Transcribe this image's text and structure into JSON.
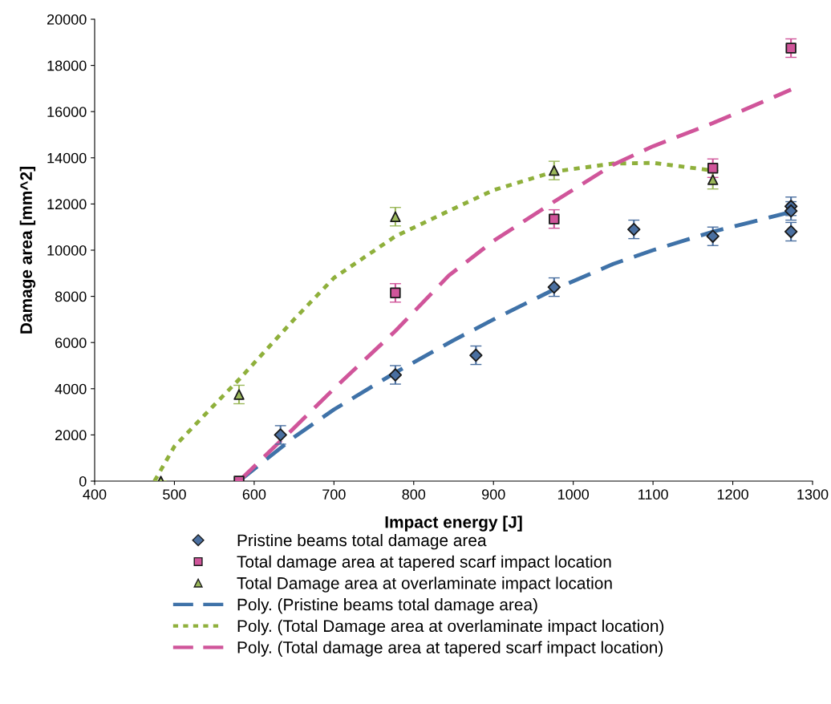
{
  "chart_data": {
    "type": "scatter",
    "xlabel": "Impact energy [J]",
    "ylabel": "Damage area [mm^2]",
    "xlim": [
      400,
      1300
    ],
    "xticks": [
      400,
      500,
      600,
      700,
      800,
      900,
      1000,
      1100,
      1200,
      1300
    ],
    "ylim": [
      0,
      20000
    ],
    "yticks": [
      0,
      2000,
      4000,
      6000,
      8000,
      10000,
      12000,
      14000,
      16000,
      18000,
      20000
    ],
    "grid": false,
    "legend": "bottom",
    "series": [
      {
        "name": "Pristine beams total damage area",
        "marker": "diamond",
        "color": "#4a6fa0",
        "x": [
          633,
          777,
          878,
          976,
          1076,
          1175,
          1273,
          1273,
          1273
        ],
        "values": [
          2000,
          4600,
          5450,
          8400,
          10900,
          10600,
          11900,
          11700,
          10800
        ],
        "errors": [
          400,
          400,
          400,
          400,
          400,
          400,
          400,
          400,
          400
        ]
      },
      {
        "name": "Total damage area at tapered scarf impact location",
        "marker": "square",
        "color": "#d0559a",
        "x": [
          581,
          777,
          976,
          1175,
          1273
        ],
        "values": [
          0,
          8150,
          11350,
          13550,
          18750
        ],
        "errors": [
          null,
          400,
          400,
          400,
          400
        ]
      },
      {
        "name": "Total Damage area at overlaminate impact location",
        "marker": "triangle",
        "color": "#9bb85a",
        "x": [
          483,
          581,
          777,
          976,
          1175
        ],
        "values": [
          0,
          3750,
          11450,
          13450,
          13050
        ],
        "errors": [
          null,
          400,
          400,
          400,
          400
        ]
      },
      {
        "name": "Poly. (Pristine beams total damage area)",
        "type": "line",
        "line_style": "dashed",
        "color": "#3f72a8",
        "x": [
          581,
          650,
          700,
          777,
          850,
          900,
          976,
          1050,
          1100,
          1175,
          1273
        ],
        "values": [
          0,
          1900,
          3100,
          4700,
          6100,
          7000,
          8300,
          9400,
          10000,
          10800,
          11650
        ]
      },
      {
        "name": "Poly. (Total Damage area at overlaminate impact location)",
        "type": "line",
        "line_style": "dotted",
        "color": "#8fb03c",
        "x": [
          475,
          500,
          550,
          581,
          650,
          700,
          777,
          844,
          900,
          976,
          1050,
          1100,
          1175
        ],
        "values": [
          0,
          1500,
          3300,
          4400,
          7000,
          8800,
          10600,
          11700,
          12600,
          13400,
          13750,
          13780,
          13450
        ]
      },
      {
        "name": "Poly. (Total damage area at tapered scarf impact location)",
        "type": "line",
        "line_style": "dashed",
        "color": "#d0559a",
        "x": [
          581,
          650,
          700,
          777,
          844,
          900,
          976,
          1050,
          1100,
          1175,
          1273
        ],
        "values": [
          0,
          2300,
          4000,
          6500,
          8900,
          10400,
          12100,
          13700,
          14500,
          15500,
          16950
        ]
      }
    ]
  }
}
